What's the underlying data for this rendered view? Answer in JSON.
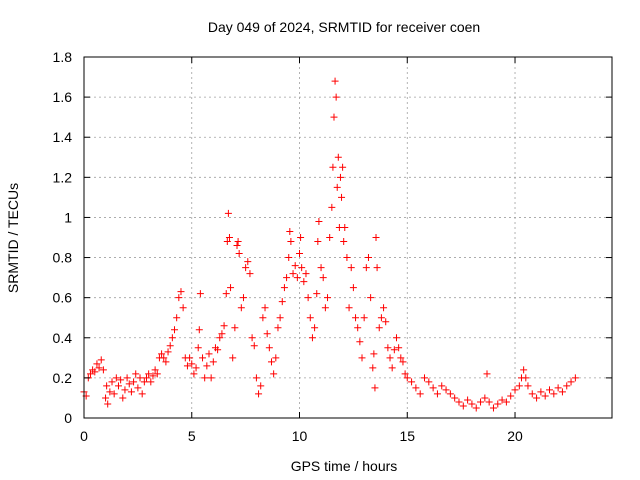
{
  "chart_data": {
    "type": "scatter",
    "title": "Day 049 of 2024, SRMTID for receiver coen",
    "xlabel": "GPS time / hours",
    "ylabel": "SRMTID / TECUs",
    "xlim": [
      0,
      24.5
    ],
    "ylim": [
      0,
      1.8
    ],
    "x_ticks": [
      0,
      5,
      10,
      15,
      20
    ],
    "x_tick_labels": [
      "0",
      "5",
      "10",
      "15",
      "20"
    ],
    "y_ticks": [
      0,
      0.2,
      0.4,
      0.6,
      0.8,
      1.0,
      1.2,
      1.4,
      1.6,
      1.8
    ],
    "y_tick_labels": [
      "0",
      "0.2",
      "0.4",
      "0.6",
      "0.8",
      "1",
      "1.2",
      "1.4",
      "1.6",
      "1.8"
    ],
    "grid": true,
    "marker": "+",
    "series": [
      {
        "name": "SRMTID",
        "color": "#ff0000",
        "points": [
          [
            0.0,
            0.13
          ],
          [
            0.1,
            0.11
          ],
          [
            0.2,
            0.2
          ],
          [
            0.3,
            0.22
          ],
          [
            0.4,
            0.24
          ],
          [
            0.5,
            0.23
          ],
          [
            0.6,
            0.27
          ],
          [
            0.7,
            0.25
          ],
          [
            0.8,
            0.29
          ],
          [
            0.9,
            0.24
          ],
          [
            1.0,
            0.1
          ],
          [
            1.05,
            0.16
          ],
          [
            1.1,
            0.07
          ],
          [
            1.2,
            0.13
          ],
          [
            1.3,
            0.18
          ],
          [
            1.4,
            0.12
          ],
          [
            1.5,
            0.2
          ],
          [
            1.6,
            0.16
          ],
          [
            1.7,
            0.19
          ],
          [
            1.8,
            0.1
          ],
          [
            1.9,
            0.14
          ],
          [
            2.0,
            0.2
          ],
          [
            2.1,
            0.17
          ],
          [
            2.2,
            0.13
          ],
          [
            2.3,
            0.18
          ],
          [
            2.4,
            0.22
          ],
          [
            2.5,
            0.15
          ],
          [
            2.6,
            0.2
          ],
          [
            2.7,
            0.12
          ],
          [
            2.8,
            0.18
          ],
          [
            2.9,
            0.2
          ],
          [
            3.0,
            0.22
          ],
          [
            3.1,
            0.18
          ],
          [
            3.2,
            0.21
          ],
          [
            3.3,
            0.24
          ],
          [
            3.4,
            0.22
          ],
          [
            3.5,
            0.3
          ],
          [
            3.6,
            0.32
          ],
          [
            3.7,
            0.3
          ],
          [
            3.8,
            0.28
          ],
          [
            3.9,
            0.33
          ],
          [
            4.0,
            0.36
          ],
          [
            4.1,
            0.4
          ],
          [
            4.2,
            0.44
          ],
          [
            4.3,
            0.5
          ],
          [
            4.4,
            0.6
          ],
          [
            4.5,
            0.63
          ],
          [
            4.6,
            0.55
          ],
          [
            4.7,
            0.3
          ],
          [
            4.8,
            0.26
          ],
          [
            4.9,
            0.3
          ],
          [
            5.0,
            0.27
          ],
          [
            5.1,
            0.22
          ],
          [
            5.2,
            0.25
          ],
          [
            5.3,
            0.35
          ],
          [
            5.35,
            0.44
          ],
          [
            5.4,
            0.62
          ],
          [
            5.5,
            0.3
          ],
          [
            5.6,
            0.2
          ],
          [
            5.7,
            0.26
          ],
          [
            5.8,
            0.32
          ],
          [
            5.9,
            0.2
          ],
          [
            6.0,
            0.28
          ],
          [
            6.1,
            0.35
          ],
          [
            6.2,
            0.34
          ],
          [
            6.3,
            0.4
          ],
          [
            6.4,
            0.42
          ],
          [
            6.5,
            0.46
          ],
          [
            6.6,
            0.62
          ],
          [
            6.65,
            0.88
          ],
          [
            6.7,
            1.02
          ],
          [
            6.75,
            0.9
          ],
          [
            6.8,
            0.65
          ],
          [
            6.9,
            0.3
          ],
          [
            7.0,
            0.45
          ],
          [
            7.1,
            0.86
          ],
          [
            7.15,
            0.88
          ],
          [
            7.2,
            0.82
          ],
          [
            7.3,
            0.55
          ],
          [
            7.4,
            0.6
          ],
          [
            7.5,
            0.75
          ],
          [
            7.6,
            0.78
          ],
          [
            7.7,
            0.72
          ],
          [
            7.8,
            0.4
          ],
          [
            7.9,
            0.36
          ],
          [
            8.0,
            0.2
          ],
          [
            8.1,
            0.12
          ],
          [
            8.2,
            0.16
          ],
          [
            8.3,
            0.5
          ],
          [
            8.4,
            0.55
          ],
          [
            8.5,
            0.42
          ],
          [
            8.6,
            0.35
          ],
          [
            8.7,
            0.28
          ],
          [
            8.8,
            0.22
          ],
          [
            8.9,
            0.3
          ],
          [
            9.0,
            0.45
          ],
          [
            9.1,
            0.5
          ],
          [
            9.2,
            0.58
          ],
          [
            9.3,
            0.65
          ],
          [
            9.4,
            0.7
          ],
          [
            9.5,
            0.8
          ],
          [
            9.55,
            0.93
          ],
          [
            9.6,
            0.88
          ],
          [
            9.7,
            0.72
          ],
          [
            9.8,
            0.76
          ],
          [
            9.9,
            0.7
          ],
          [
            10.0,
            0.82
          ],
          [
            10.05,
            0.9
          ],
          [
            10.1,
            0.75
          ],
          [
            10.2,
            0.68
          ],
          [
            10.3,
            0.72
          ],
          [
            10.4,
            0.6
          ],
          [
            10.5,
            0.5
          ],
          [
            10.6,
            0.4
          ],
          [
            10.7,
            0.45
          ],
          [
            10.8,
            0.62
          ],
          [
            10.85,
            0.88
          ],
          [
            10.9,
            0.98
          ],
          [
            11.0,
            0.75
          ],
          [
            11.1,
            0.7
          ],
          [
            11.2,
            0.55
          ],
          [
            11.3,
            0.6
          ],
          [
            11.4,
            0.9
          ],
          [
            11.5,
            1.05
          ],
          [
            11.55,
            1.25
          ],
          [
            11.6,
            1.5
          ],
          [
            11.65,
            1.68
          ],
          [
            11.7,
            1.6
          ],
          [
            11.75,
            1.15
          ],
          [
            11.8,
            1.3
          ],
          [
            11.85,
            0.95
          ],
          [
            11.9,
            1.2
          ],
          [
            11.95,
            1.1
          ],
          [
            12.0,
            1.25
          ],
          [
            12.05,
            0.88
          ],
          [
            12.1,
            0.95
          ],
          [
            12.2,
            0.8
          ],
          [
            12.3,
            0.55
          ],
          [
            12.4,
            0.75
          ],
          [
            12.5,
            0.65
          ],
          [
            12.6,
            0.5
          ],
          [
            12.7,
            0.45
          ],
          [
            12.8,
            0.38
          ],
          [
            12.9,
            0.3
          ],
          [
            13.0,
            0.5
          ],
          [
            13.1,
            0.75
          ],
          [
            13.2,
            0.8
          ],
          [
            13.3,
            0.6
          ],
          [
            13.4,
            0.25
          ],
          [
            13.45,
            0.32
          ],
          [
            13.5,
            0.15
          ],
          [
            13.55,
            0.9
          ],
          [
            13.6,
            0.75
          ],
          [
            13.7,
            0.45
          ],
          [
            13.8,
            0.5
          ],
          [
            13.9,
            0.55
          ],
          [
            14.0,
            0.48
          ],
          [
            14.1,
            0.35
          ],
          [
            14.2,
            0.3
          ],
          [
            14.3,
            0.25
          ],
          [
            14.4,
            0.34
          ],
          [
            14.5,
            0.4
          ],
          [
            14.6,
            0.35
          ],
          [
            14.7,
            0.3
          ],
          [
            14.8,
            0.28
          ],
          [
            14.9,
            0.22
          ],
          [
            15.0,
            0.2
          ],
          [
            15.2,
            0.18
          ],
          [
            15.4,
            0.15
          ],
          [
            15.6,
            0.12
          ],
          [
            15.8,
            0.2
          ],
          [
            16.0,
            0.18
          ],
          [
            16.2,
            0.15
          ],
          [
            16.4,
            0.12
          ],
          [
            16.6,
            0.16
          ],
          [
            16.8,
            0.14
          ],
          [
            17.0,
            0.12
          ],
          [
            17.2,
            0.1
          ],
          [
            17.4,
            0.08
          ],
          [
            17.6,
            0.06
          ],
          [
            17.8,
            0.09
          ],
          [
            18.0,
            0.07
          ],
          [
            18.2,
            0.05
          ],
          [
            18.4,
            0.08
          ],
          [
            18.6,
            0.1
          ],
          [
            18.7,
            0.22
          ],
          [
            18.8,
            0.08
          ],
          [
            19.0,
            0.05
          ],
          [
            19.2,
            0.07
          ],
          [
            19.4,
            0.09
          ],
          [
            19.6,
            0.08
          ],
          [
            19.8,
            0.11
          ],
          [
            20.0,
            0.14
          ],
          [
            20.2,
            0.16
          ],
          [
            20.3,
            0.2
          ],
          [
            20.4,
            0.24
          ],
          [
            20.5,
            0.2
          ],
          [
            20.6,
            0.16
          ],
          [
            20.8,
            0.12
          ],
          [
            21.0,
            0.1
          ],
          [
            21.2,
            0.13
          ],
          [
            21.4,
            0.11
          ],
          [
            21.6,
            0.14
          ],
          [
            21.8,
            0.12
          ],
          [
            22.0,
            0.15
          ],
          [
            22.2,
            0.13
          ],
          [
            22.4,
            0.16
          ],
          [
            22.6,
            0.18
          ],
          [
            22.8,
            0.2
          ]
        ]
      }
    ]
  }
}
